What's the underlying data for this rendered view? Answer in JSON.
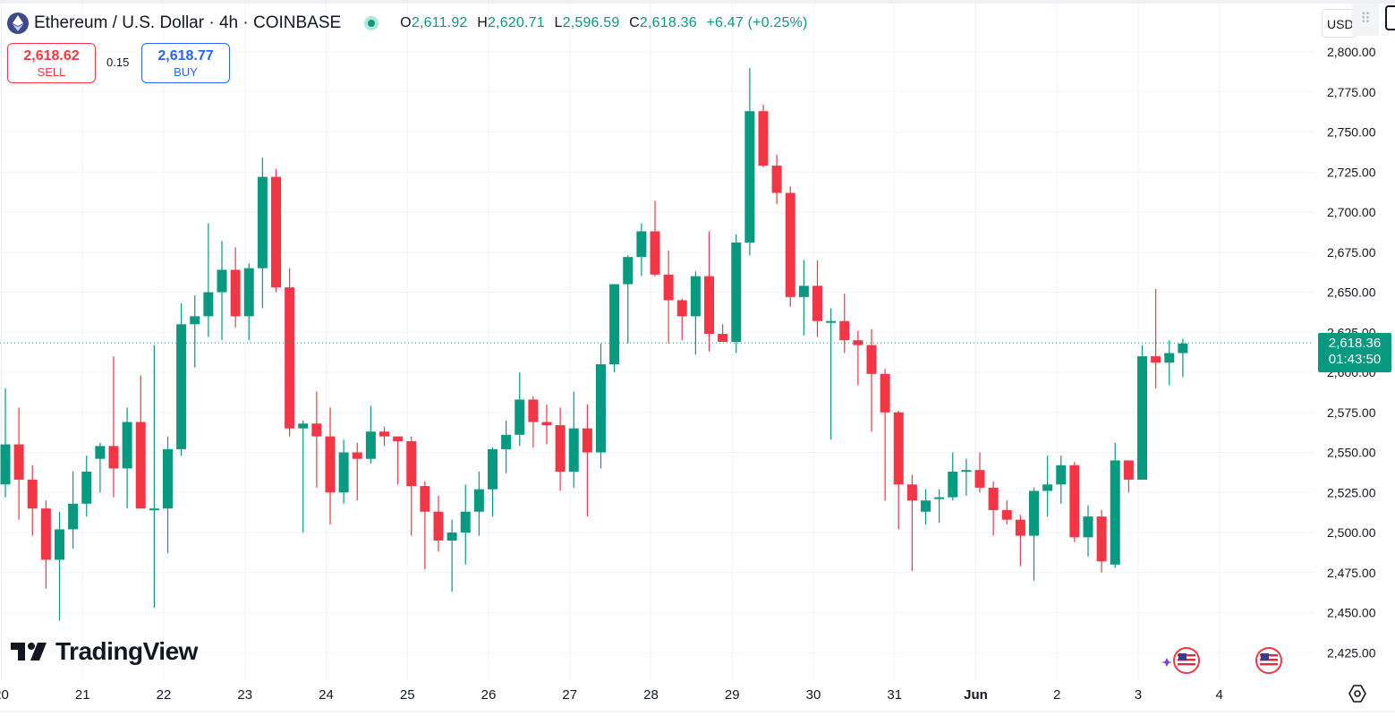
{
  "header": {
    "symbol_icon": "ethereum-icon",
    "title": "Ethereum / U.S. Dollar · 4h · COINBASE",
    "status_icon": "market-open-dot-icon",
    "ohlc": {
      "o_label": "O",
      "o": "2,611.92",
      "h_label": "H",
      "h": "2,620.71",
      "l_label": "L",
      "l": "2,596.59",
      "c_label": "C",
      "c": "2,618.36",
      "change": "+6.47 (+0.25%)"
    }
  },
  "trade": {
    "sell_price": "2,618.62",
    "sell_label": "SELL",
    "spread": "0.15",
    "buy_price": "2,618.77",
    "buy_label": "BUY"
  },
  "price_scale": {
    "currency": "USD"
  },
  "last_price": {
    "value": "2,618.36",
    "countdown": "01:43:50"
  },
  "branding": {
    "logo_text": "TradingView"
  },
  "colors": {
    "up": "#089981",
    "down": "#f23645",
    "grid": "#f0f3fa",
    "text": "#131722"
  },
  "icons": {
    "grip": "drag-handle-icon",
    "flag": "us-flag-icon",
    "settings": "chart-settings-icon"
  },
  "chart_data": {
    "type": "candlestick",
    "title": "Ethereum / U.S. Dollar · 4h · COINBASE",
    "interval": "4h",
    "ylim": [
      2410,
      2815
    ],
    "y_ticks": [
      2425,
      2450,
      2475,
      2500,
      2525,
      2550,
      2575,
      2600,
      2625,
      2650,
      2675,
      2700,
      2725,
      2750,
      2775,
      2800
    ],
    "y_tick_labels": [
      "2,425.00",
      "2,450.00",
      "2,475.00",
      "2,500.00",
      "2,525.00",
      "2,550.00",
      "2,575.00",
      "2,600.00",
      "2,625.00",
      "2,650.00",
      "2,675.00",
      "2,700.00",
      "2,725.00",
      "2,750.00",
      "2,775.00",
      "2,800.00"
    ],
    "x_labels": [
      "20",
      "21",
      "22",
      "23",
      "24",
      "25",
      "26",
      "27",
      "28",
      "29",
      "30",
      "31",
      "Jun",
      "2",
      "3",
      "4"
    ],
    "x_label_slots": [
      -0.3,
      5.7,
      11.7,
      17.7,
      23.7,
      29.7,
      35.7,
      41.7,
      47.7,
      53.7,
      59.7,
      65.7,
      71.7,
      77.7,
      83.7,
      89.7
    ],
    "last_price": 2618.36,
    "candles": [
      {
        "o": 2530,
        "h": 2590,
        "l": 2522,
        "c": 2555
      },
      {
        "o": 2555,
        "h": 2578,
        "l": 2508,
        "c": 2533
      },
      {
        "o": 2533,
        "h": 2542,
        "l": 2498,
        "c": 2515
      },
      {
        "o": 2515,
        "h": 2520,
        "l": 2465,
        "c": 2483
      },
      {
        "o": 2483,
        "h": 2513,
        "l": 2445,
        "c": 2502
      },
      {
        "o": 2502,
        "h": 2538,
        "l": 2490,
        "c": 2518
      },
      {
        "o": 2518,
        "h": 2548,
        "l": 2510,
        "c": 2538
      },
      {
        "o": 2546,
        "h": 2556,
        "l": 2525,
        "c": 2554
      },
      {
        "o": 2554,
        "h": 2610,
        "l": 2522,
        "c": 2540
      },
      {
        "o": 2540,
        "h": 2578,
        "l": 2515,
        "c": 2569
      },
      {
        "o": 2569,
        "h": 2598,
        "l": 2515,
        "c": 2515
      },
      {
        "o": 2515,
        "h": 2617,
        "l": 2453,
        "c": 2515
      },
      {
        "o": 2515,
        "h": 2560,
        "l": 2487,
        "c": 2552
      },
      {
        "o": 2552,
        "h": 2643,
        "l": 2548,
        "c": 2630
      },
      {
        "o": 2630,
        "h": 2648,
        "l": 2603,
        "c": 2635
      },
      {
        "o": 2635,
        "h": 2693,
        "l": 2622,
        "c": 2650
      },
      {
        "o": 2650,
        "h": 2682,
        "l": 2620,
        "c": 2664
      },
      {
        "o": 2664,
        "h": 2678,
        "l": 2628,
        "c": 2635
      },
      {
        "o": 2635,
        "h": 2668,
        "l": 2620,
        "c": 2665
      },
      {
        "o": 2665,
        "h": 2734,
        "l": 2640,
        "c": 2722
      },
      {
        "o": 2722,
        "h": 2727,
        "l": 2650,
        "c": 2653
      },
      {
        "o": 2653,
        "h": 2665,
        "l": 2560,
        "c": 2565
      },
      {
        "o": 2565,
        "h": 2570,
        "l": 2500,
        "c": 2568
      },
      {
        "o": 2568,
        "h": 2588,
        "l": 2528,
        "c": 2560
      },
      {
        "o": 2560,
        "h": 2578,
        "l": 2505,
        "c": 2525
      },
      {
        "o": 2525,
        "h": 2558,
        "l": 2518,
        "c": 2550
      },
      {
        "o": 2550,
        "h": 2556,
        "l": 2520,
        "c": 2546
      },
      {
        "o": 2546,
        "h": 2579,
        "l": 2543,
        "c": 2563
      },
      {
        "o": 2563,
        "h": 2566,
        "l": 2554,
        "c": 2560
      },
      {
        "o": 2560,
        "h": 2560,
        "l": 2530,
        "c": 2557
      },
      {
        "o": 2557,
        "h": 2560,
        "l": 2498,
        "c": 2529
      },
      {
        "o": 2529,
        "h": 2532,
        "l": 2477,
        "c": 2513
      },
      {
        "o": 2513,
        "h": 2523,
        "l": 2488,
        "c": 2495
      },
      {
        "o": 2495,
        "h": 2508,
        "l": 2463,
        "c": 2500
      },
      {
        "o": 2500,
        "h": 2530,
        "l": 2480,
        "c": 2513
      },
      {
        "o": 2513,
        "h": 2538,
        "l": 2498,
        "c": 2527
      },
      {
        "o": 2527,
        "h": 2553,
        "l": 2510,
        "c": 2552
      },
      {
        "o": 2552,
        "h": 2570,
        "l": 2537,
        "c": 2561
      },
      {
        "o": 2561,
        "h": 2600,
        "l": 2554,
        "c": 2583
      },
      {
        "o": 2583,
        "h": 2585,
        "l": 2553,
        "c": 2569
      },
      {
        "o": 2569,
        "h": 2580,
        "l": 2555,
        "c": 2567
      },
      {
        "o": 2567,
        "h": 2578,
        "l": 2526,
        "c": 2538
      },
      {
        "o": 2538,
        "h": 2588,
        "l": 2528,
        "c": 2565
      },
      {
        "o": 2565,
        "h": 2580,
        "l": 2510,
        "c": 2550
      },
      {
        "o": 2550,
        "h": 2618,
        "l": 2540,
        "c": 2605
      },
      {
        "o": 2605,
        "h": 2655,
        "l": 2600,
        "c": 2655
      },
      {
        "o": 2655,
        "h": 2673,
        "l": 2618,
        "c": 2672
      },
      {
        "o": 2672,
        "h": 2693,
        "l": 2660,
        "c": 2688
      },
      {
        "o": 2688,
        "h": 2707,
        "l": 2660,
        "c": 2661
      },
      {
        "o": 2661,
        "h": 2676,
        "l": 2618,
        "c": 2645
      },
      {
        "o": 2645,
        "h": 2646,
        "l": 2620,
        "c": 2635
      },
      {
        "o": 2635,
        "h": 2663,
        "l": 2611,
        "c": 2660
      },
      {
        "o": 2660,
        "h": 2688,
        "l": 2613,
        "c": 2624
      },
      {
        "o": 2624,
        "h": 2630,
        "l": 2619,
        "c": 2619
      },
      {
        "o": 2619,
        "h": 2686,
        "l": 2612,
        "c": 2681
      },
      {
        "o": 2681,
        "h": 2790,
        "l": 2673,
        "c": 2763
      },
      {
        "o": 2763,
        "h": 2767,
        "l": 2728,
        "c": 2729
      },
      {
        "o": 2729,
        "h": 2736,
        "l": 2705,
        "c": 2712
      },
      {
        "o": 2712,
        "h": 2716,
        "l": 2641,
        "c": 2647
      },
      {
        "o": 2647,
        "h": 2670,
        "l": 2623,
        "c": 2654
      },
      {
        "o": 2654,
        "h": 2670,
        "l": 2622,
        "c": 2632
      },
      {
        "o": 2632,
        "h": 2640,
        "l": 2558,
        "c": 2632
      },
      {
        "o": 2632,
        "h": 2649,
        "l": 2612,
        "c": 2620
      },
      {
        "o": 2620,
        "h": 2626,
        "l": 2592,
        "c": 2617
      },
      {
        "o": 2617,
        "h": 2627,
        "l": 2563,
        "c": 2599
      },
      {
        "o": 2599,
        "h": 2602,
        "l": 2520,
        "c": 2575
      },
      {
        "o": 2575,
        "h": 2576,
        "l": 2502,
        "c": 2530
      },
      {
        "o": 2530,
        "h": 2536,
        "l": 2476,
        "c": 2520
      },
      {
        "o": 2513,
        "h": 2527,
        "l": 2505,
        "c": 2520
      },
      {
        "o": 2521,
        "h": 2527,
        "l": 2506,
        "c": 2522
      },
      {
        "o": 2522,
        "h": 2550,
        "l": 2520,
        "c": 2538
      },
      {
        "o": 2538,
        "h": 2546,
        "l": 2523,
        "c": 2539
      },
      {
        "o": 2539,
        "h": 2550,
        "l": 2525,
        "c": 2528
      },
      {
        "o": 2528,
        "h": 2532,
        "l": 2498,
        "c": 2514
      },
      {
        "o": 2514,
        "h": 2520,
        "l": 2505,
        "c": 2508
      },
      {
        "o": 2508,
        "h": 2511,
        "l": 2479,
        "c": 2498
      },
      {
        "o": 2498,
        "h": 2528,
        "l": 2470,
        "c": 2526
      },
      {
        "o": 2526,
        "h": 2548,
        "l": 2510,
        "c": 2530
      },
      {
        "o": 2530,
        "h": 2548,
        "l": 2518,
        "c": 2542
      },
      {
        "o": 2542,
        "h": 2544,
        "l": 2494,
        "c": 2497
      },
      {
        "o": 2497,
        "h": 2517,
        "l": 2485,
        "c": 2510
      },
      {
        "o": 2510,
        "h": 2514,
        "l": 2475,
        "c": 2482
      },
      {
        "o": 2480,
        "h": 2556,
        "l": 2478,
        "c": 2545
      },
      {
        "o": 2545,
        "h": 2545,
        "l": 2525,
        "c": 2533
      },
      {
        "o": 2533,
        "h": 2617,
        "l": 2533,
        "c": 2610
      },
      {
        "o": 2610,
        "h": 2652,
        "l": 2590,
        "c": 2606
      },
      {
        "o": 2606,
        "h": 2620,
        "l": 2592,
        "c": 2612
      },
      {
        "o": 2612,
        "h": 2621,
        "l": 2597,
        "c": 2618
      }
    ]
  }
}
